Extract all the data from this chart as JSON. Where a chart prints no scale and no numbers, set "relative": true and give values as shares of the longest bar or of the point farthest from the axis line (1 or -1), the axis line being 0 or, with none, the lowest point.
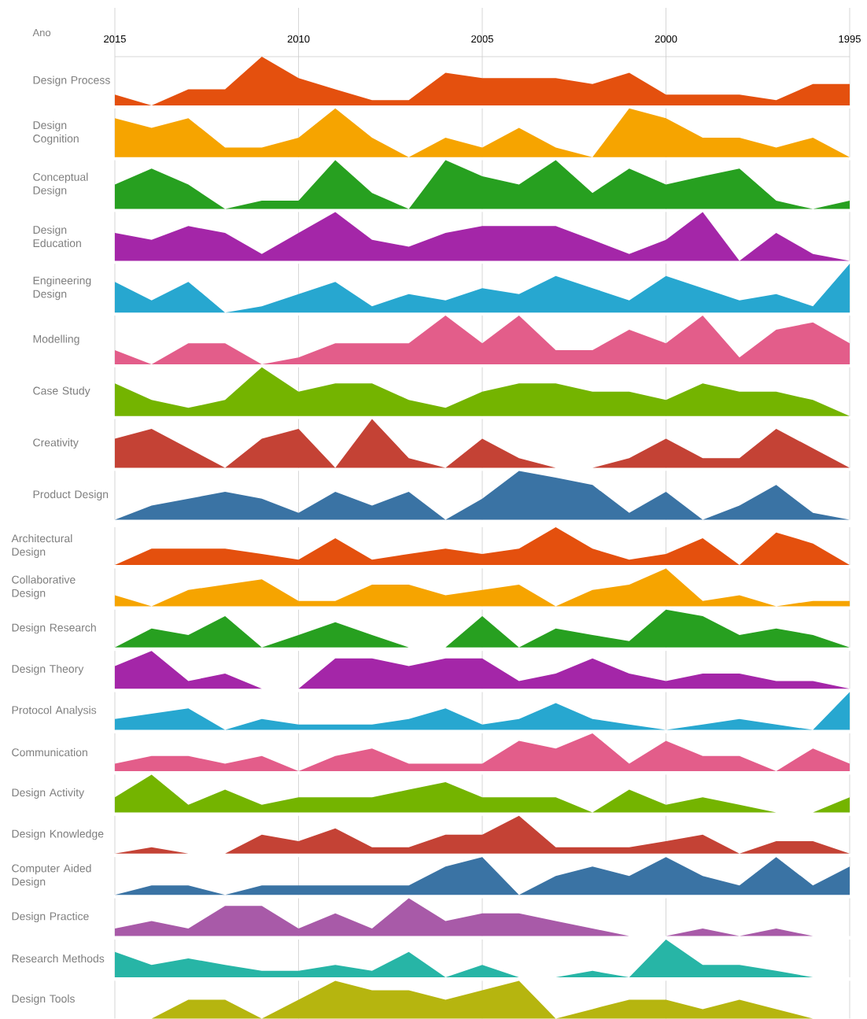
{
  "chart_data": [
    {
      "type": "area",
      "xlabel": "Ano",
      "ylabel": "Design Process",
      "color": "#e4500e",
      "relative": true,
      "grid": "x",
      "xlim": [
        2015,
        1995
      ],
      "xticks": [
        2015,
        2010,
        2005,
        2000,
        1995
      ],
      "x": [
        2015,
        2014,
        2013,
        2012,
        2011,
        2010,
        2009,
        2008,
        2007,
        2006,
        2005,
        2004,
        2003,
        2002,
        2001,
        2000,
        1999,
        1998,
        1997,
        1996,
        1995
      ],
      "values": [
        0.22,
        0,
        0.33,
        0.33,
        1,
        0.56,
        0.33,
        0.11,
        0.11,
        0.67,
        0.56,
        0.56,
        0.56,
        0.44,
        0.67,
        0.22,
        0.22,
        0.22,
        0.11,
        0.44,
        0.44
      ]
    },
    {
      "type": "area",
      "ylabel": "Design Cognition",
      "color": "#f6a400",
      "relative": true,
      "grid": "x",
      "tick_labels": false,
      "xlim": [
        2015,
        1995
      ],
      "xticks": [
        2015,
        2010,
        2005,
        2000,
        1995
      ],
      "x": [
        2015,
        2014,
        2013,
        2012,
        2011,
        2010,
        2009,
        2008,
        2007,
        2006,
        2005,
        2004,
        2003,
        2002,
        2001,
        2000,
        1999,
        1998,
        1997,
        1996,
        1995
      ],
      "values": [
        0.8,
        0.6,
        0.8,
        0.2,
        0.2,
        0.4,
        1,
        0.4,
        0,
        0.4,
        0.2,
        0.6,
        0.2,
        0,
        1,
        0.8,
        0.4,
        0.4,
        0.2,
        0.4,
        0
      ]
    },
    {
      "type": "area",
      "ylabel": "Conceptual Design",
      "color": "#27a020",
      "relative": true,
      "grid": "x",
      "tick_labels": false,
      "xlim": [
        2015,
        1995
      ],
      "xticks": [
        2015,
        2010,
        2005,
        2000,
        1995
      ],
      "x": [
        2015,
        2014,
        2013,
        2012,
        2011,
        2010,
        2009,
        2008,
        2007,
        2006,
        2005,
        2004,
        2003,
        2002,
        2001,
        2000,
        1999,
        1998,
        1997,
        1996,
        1995
      ],
      "values": [
        0.5,
        0.83,
        0.5,
        0,
        0.17,
        0.17,
        1,
        0.33,
        0,
        1,
        0.67,
        0.5,
        1,
        0.33,
        0.83,
        0.5,
        0.67,
        0.83,
        0.17,
        0,
        0.17
      ]
    },
    {
      "type": "area",
      "ylabel": "Design Education",
      "color": "#a426a8",
      "relative": true,
      "grid": "x",
      "tick_labels": false,
      "xlim": [
        2015,
        1995
      ],
      "xticks": [
        2015,
        2010,
        2005,
        2000,
        1995
      ],
      "x": [
        2015,
        2014,
        2013,
        2012,
        2011,
        2010,
        2009,
        2008,
        2007,
        2006,
        2005,
        2004,
        2003,
        2002,
        2001,
        2000,
        1999,
        1998,
        1997,
        1996,
        1995
      ],
      "values": [
        0.57,
        0.43,
        0.71,
        0.57,
        0.14,
        0.57,
        1,
        0.43,
        0.29,
        0.57,
        0.71,
        0.71,
        0.71,
        0.43,
        0.14,
        0.43,
        1,
        0,
        0.57,
        0.14,
        0
      ]
    },
    {
      "type": "area",
      "ylabel": "Engineering Design",
      "color": "#27a7d0",
      "relative": true,
      "grid": "x",
      "tick_labels": false,
      "xlim": [
        2015,
        1995
      ],
      "xticks": [
        2015,
        2010,
        2005,
        2000,
        1995
      ],
      "x": [
        2015,
        2014,
        2013,
        2012,
        2011,
        2010,
        2009,
        2008,
        2007,
        2006,
        2005,
        2004,
        2003,
        2002,
        2001,
        2000,
        1999,
        1998,
        1997,
        1996,
        1995
      ],
      "values": [
        0.63,
        0.25,
        0.63,
        0,
        0.13,
        0.38,
        0.63,
        0.13,
        0.38,
        0.25,
        0.5,
        0.38,
        0.75,
        0.5,
        0.25,
        0.75,
        0.5,
        0.25,
        0.38,
        0.13,
        1
      ]
    },
    {
      "type": "area",
      "ylabel": "Modelling",
      "color": "#e35d8a",
      "relative": true,
      "grid": "x",
      "tick_labels": false,
      "xlim": [
        2015,
        1995
      ],
      "xticks": [
        2015,
        2010,
        2005,
        2000,
        1995
      ],
      "x": [
        2015,
        2014,
        2013,
        2012,
        2011,
        2010,
        2009,
        2008,
        2007,
        2006,
        2005,
        2004,
        2003,
        2002,
        2001,
        2000,
        1999,
        1998,
        1997,
        1996,
        1995
      ],
      "values": [
        0.29,
        0,
        0.43,
        0.43,
        0,
        0.14,
        0.43,
        0.43,
        0.43,
        1,
        0.43,
        1,
        0.29,
        0.29,
        0.71,
        0.43,
        1,
        0.14,
        0.71,
        0.86,
        0.43
      ]
    },
    {
      "type": "area",
      "ylabel": "Case Study",
      "color": "#74b400",
      "relative": true,
      "grid": "x",
      "tick_labels": false,
      "xlim": [
        2015,
        1995
      ],
      "xticks": [
        2015,
        2010,
        2005,
        2000,
        1995
      ],
      "x": [
        2015,
        2014,
        2013,
        2012,
        2011,
        2010,
        2009,
        2008,
        2007,
        2006,
        2005,
        2004,
        2003,
        2002,
        2001,
        2000,
        1999,
        1998,
        1997,
        1996,
        1995
      ],
      "values": [
        0.67,
        0.33,
        0.17,
        0.33,
        1,
        0.5,
        0.67,
        0.67,
        0.33,
        0.17,
        0.5,
        0.67,
        0.67,
        0.5,
        0.5,
        0.33,
        0.67,
        0.5,
        0.5,
        0.33,
        0
      ]
    },
    {
      "type": "area",
      "ylabel": "Creativity",
      "color": "#c44235",
      "relative": true,
      "grid": "x",
      "tick_labels": false,
      "xlim": [
        2015,
        1995
      ],
      "xticks": [
        2015,
        2010,
        2005,
        2000,
        1995
      ],
      "x": [
        2015,
        2014,
        2013,
        2012,
        2011,
        2010,
        2009,
        2008,
        2007,
        2006,
        2005,
        2004,
        2003,
        2002,
        2001,
        2000,
        1999,
        1998,
        1997,
        1996,
        1995
      ],
      "values": [
        0.6,
        0.8,
        0.4,
        0,
        0.6,
        0.8,
        0,
        1,
        0.2,
        0,
        0.6,
        0.2,
        0,
        0,
        0.2,
        0.6,
        0.2,
        0.2,
        0.8,
        0.4,
        0
      ]
    },
    {
      "type": "area",
      "ylabel": "Product Design",
      "color": "#3a73a4",
      "relative": true,
      "grid": "x",
      "tick_labels": false,
      "xlim": [
        2015,
        1995
      ],
      "xticks": [
        2015,
        2010,
        2005,
        2000,
        1995
      ],
      "x": [
        2015,
        2014,
        2013,
        2012,
        2011,
        2010,
        2009,
        2008,
        2007,
        2006,
        2005,
        2004,
        2003,
        2002,
        2001,
        2000,
        1999,
        1998,
        1997,
        1996,
        1995
      ],
      "values": [
        0,
        0.29,
        0.43,
        0.57,
        0.43,
        0.14,
        0.57,
        0.29,
        0.57,
        0,
        0.43,
        1,
        0.86,
        0.71,
        0.14,
        0.57,
        0,
        0.29,
        0.71,
        0.14,
        0
      ]
    },
    {
      "type": "area",
      "ylabel": "Architectural Design",
      "color": "#e4500e",
      "relative": true,
      "grid": "x",
      "tick_labels": false,
      "xlim": [
        2015,
        1995
      ],
      "xticks": [
        2015,
        2010,
        2005,
        2000,
        1995
      ],
      "x": [
        2015,
        2014,
        2013,
        2012,
        2011,
        2010,
        2009,
        2008,
        2007,
        2006,
        2005,
        2004,
        2003,
        2002,
        2001,
        2000,
        1999,
        1998,
        1997,
        1996,
        1995
      ],
      "values": [
        0,
        0.43,
        0.43,
        0.43,
        0.29,
        0.14,
        0.71,
        0.14,
        0.29,
        0.43,
        0.29,
        0.43,
        1,
        0.43,
        0.14,
        0.29,
        0.71,
        0,
        0.86,
        0.57,
        0
      ]
    },
    {
      "type": "area",
      "ylabel": "Collaborative Design",
      "color": "#f6a400",
      "relative": true,
      "grid": "x",
      "tick_labels": false,
      "xlim": [
        2015,
        1995
      ],
      "xticks": [
        2015,
        2010,
        2005,
        2000,
        1995
      ],
      "x": [
        2015,
        2014,
        2013,
        2012,
        2011,
        2010,
        2009,
        2008,
        2007,
        2006,
        2005,
        2004,
        2003,
        2002,
        2001,
        2000,
        1999,
        1998,
        1997,
        1996,
        1995
      ],
      "values": [
        0.29,
        0,
        0.43,
        0.57,
        0.71,
        0.14,
        0.14,
        0.57,
        0.57,
        0.29,
        0.43,
        0.57,
        0,
        0.43,
        0.57,
        1,
        0.14,
        0.29,
        0,
        0.14,
        0.14
      ]
    },
    {
      "type": "area",
      "ylabel": "Design Research",
      "color": "#27a020",
      "relative": true,
      "grid": "x",
      "tick_labels": false,
      "xlim": [
        2015,
        1995
      ],
      "xticks": [
        2015,
        2010,
        2005,
        2000,
        1995
      ],
      "x": [
        2015,
        2014,
        2013,
        2012,
        2011,
        2010,
        2009,
        2008,
        2007,
        2006,
        2005,
        2004,
        2003,
        2002,
        2001,
        2000,
        1999,
        1998,
        1997,
        1996,
        1995
      ],
      "values": [
        0,
        0.5,
        0.33,
        0.83,
        0,
        0.33,
        0.67,
        0.33,
        0,
        0,
        0.83,
        0,
        0.5,
        0.33,
        0.17,
        1,
        0.83,
        0.33,
        0.5,
        0.33,
        0
      ]
    },
    {
      "type": "area",
      "ylabel": "Design Theory",
      "color": "#a426a8",
      "relative": true,
      "grid": "x",
      "tick_labels": false,
      "xlim": [
        2015,
        1995
      ],
      "xticks": [
        2015,
        2010,
        2005,
        2000,
        1995
      ],
      "x": [
        2015,
        2014,
        2013,
        2012,
        2011,
        2010,
        2009,
        2008,
        2007,
        2006,
        2005,
        2004,
        2003,
        2002,
        2001,
        2000,
        1999,
        1998,
        1997,
        1996,
        1995
      ],
      "values": [
        0.6,
        1,
        0.2,
        0.4,
        0,
        0,
        0.8,
        0.8,
        0.6,
        0.8,
        0.8,
        0.2,
        0.4,
        0.8,
        0.4,
        0.2,
        0.4,
        0.4,
        0.2,
        0.2,
        0
      ]
    },
    {
      "type": "area",
      "ylabel": "Protocol Analysis",
      "color": "#27a7d0",
      "relative": true,
      "grid": "x",
      "tick_labels": false,
      "xlim": [
        2015,
        1995
      ],
      "xticks": [
        2015,
        2010,
        2005,
        2000,
        1995
      ],
      "x": [
        2015,
        2014,
        2013,
        2012,
        2011,
        2010,
        2009,
        2008,
        2007,
        2006,
        2005,
        2004,
        2003,
        2002,
        2001,
        2000,
        1999,
        1998,
        1997,
        1996,
        1995
      ],
      "values": [
        0.29,
        0.43,
        0.57,
        0,
        0.29,
        0.14,
        0.14,
        0.14,
        0.29,
        0.57,
        0.14,
        0.29,
        0.71,
        0.29,
        0.14,
        0,
        0.14,
        0.29,
        0.14,
        0,
        1
      ]
    },
    {
      "type": "area",
      "ylabel": "Communication",
      "color": "#e35d8a",
      "relative": true,
      "grid": "x",
      "tick_labels": false,
      "xlim": [
        2015,
        1995
      ],
      "xticks": [
        2015,
        2010,
        2005,
        2000,
        1995
      ],
      "x": [
        2015,
        2014,
        2013,
        2012,
        2011,
        2010,
        2009,
        2008,
        2007,
        2006,
        2005,
        2004,
        2003,
        2002,
        2001,
        2000,
        1999,
        1998,
        1997,
        1996,
        1995
      ],
      "values": [
        0.2,
        0.4,
        0.4,
        0.2,
        0.4,
        0,
        0.4,
        0.6,
        0.2,
        0.2,
        0.2,
        0.8,
        0.6,
        1,
        0.2,
        0.8,
        0.4,
        0.4,
        0,
        0.6,
        0.2
      ]
    },
    {
      "type": "area",
      "ylabel": "Design Activity",
      "color": "#74b400",
      "relative": true,
      "grid": "x",
      "tick_labels": false,
      "xlim": [
        2015,
        1995
      ],
      "xticks": [
        2015,
        2010,
        2005,
        2000,
        1995
      ],
      "x": [
        2015,
        2014,
        2013,
        2012,
        2011,
        2010,
        2009,
        2008,
        2007,
        2006,
        2005,
        2004,
        2003,
        2002,
        2001,
        2000,
        1999,
        1998,
        1997,
        1996,
        1995
      ],
      "values": [
        0.4,
        1,
        0.2,
        0.6,
        0.2,
        0.4,
        0.4,
        0.4,
        0.6,
        0.8,
        0.4,
        0.4,
        0.4,
        0,
        0.6,
        0.2,
        0.4,
        0.2,
        0,
        0,
        0.4
      ]
    },
    {
      "type": "area",
      "ylabel": "Design Knowledge",
      "color": "#c44235",
      "relative": true,
      "grid": "x",
      "tick_labels": false,
      "xlim": [
        2015,
        1995
      ],
      "xticks": [
        2015,
        2010,
        2005,
        2000,
        1995
      ],
      "x": [
        2015,
        2014,
        2013,
        2012,
        2011,
        2010,
        2009,
        2008,
        2007,
        2006,
        2005,
        2004,
        2003,
        2002,
        2001,
        2000,
        1999,
        1998,
        1997,
        1996,
        1995
      ],
      "values": [
        0,
        0.17,
        0,
        0,
        0.5,
        0.33,
        0.67,
        0.17,
        0.17,
        0.5,
        0.5,
        1,
        0.17,
        0.17,
        0.17,
        0.33,
        0.5,
        0,
        0.33,
        0.33,
        0
      ]
    },
    {
      "type": "area",
      "ylabel": "Computer Aided Design",
      "color": "#3a73a4",
      "relative": true,
      "grid": "x",
      "tick_labels": false,
      "xlim": [
        2015,
        1995
      ],
      "xticks": [
        2015,
        2010,
        2005,
        2000,
        1995
      ],
      "x": [
        2015,
        2014,
        2013,
        2012,
        2011,
        2010,
        2009,
        2008,
        2007,
        2006,
        2005,
        2004,
        2003,
        2002,
        2001,
        2000,
        1999,
        1998,
        1997,
        1996,
        1995
      ],
      "values": [
        0,
        0.25,
        0.25,
        0,
        0.25,
        0.25,
        0.25,
        0.25,
        0.25,
        0.75,
        1,
        0,
        0.5,
        0.75,
        0.5,
        1,
        0.5,
        0.25,
        1,
        0.25,
        0.75
      ]
    },
    {
      "type": "area",
      "ylabel": "Design Practice",
      "color": "#a85aa8",
      "relative": true,
      "grid": "x",
      "tick_labels": false,
      "xlim": [
        2015,
        1995
      ],
      "xticks": [
        2015,
        2010,
        2005,
        2000,
        1995
      ],
      "x": [
        2015,
        2014,
        2013,
        2012,
        2011,
        2010,
        2009,
        2008,
        2007,
        2006,
        2005,
        2004,
        2003,
        2002,
        2001,
        2000,
        1999,
        1998,
        1997,
        1996,
        1995
      ],
      "values": [
        0.2,
        0.4,
        0.2,
        0.8,
        0.8,
        0.2,
        0.6,
        0.2,
        1,
        0.4,
        0.6,
        0.6,
        0.4,
        0.2,
        0,
        0,
        0.2,
        0,
        0.2,
        0,
        0
      ]
    },
    {
      "type": "area",
      "ylabel": "Research Methods",
      "color": "#27b5a6",
      "relative": true,
      "grid": "x",
      "tick_labels": false,
      "xlim": [
        2015,
        1995
      ],
      "xticks": [
        2015,
        2010,
        2005,
        2000,
        1995
      ],
      "x": [
        2015,
        2014,
        2013,
        2012,
        2011,
        2010,
        2009,
        2008,
        2007,
        2006,
        2005,
        2004,
        2003,
        2002,
        2001,
        2000,
        1999,
        1998,
        1997,
        1996,
        1995
      ],
      "values": [
        0.67,
        0.33,
        0.5,
        0.33,
        0.17,
        0.17,
        0.33,
        0.17,
        0.67,
        0,
        0.33,
        0,
        0,
        0.17,
        0,
        1,
        0.33,
        0.33,
        0.17,
        0,
        0
      ]
    },
    {
      "type": "area",
      "ylabel": "Design Tools",
      "color": "#b6b50f",
      "relative": true,
      "grid": "x",
      "tick_labels": false,
      "xlim": [
        2015,
        1995
      ],
      "xticks": [
        2015,
        2010,
        2005,
        2000,
        1995
      ],
      "x": [
        2015,
        2014,
        2013,
        2012,
        2011,
        2010,
        2009,
        2008,
        2007,
        2006,
        2005,
        2004,
        2003,
        2002,
        2001,
        2000,
        1999,
        1998,
        1997,
        1996,
        1995
      ],
      "values": [
        0,
        0,
        0.5,
        0.5,
        0,
        0.5,
        1,
        0.75,
        0.75,
        0.5,
        0.75,
        1,
        0,
        0.25,
        0.5,
        0.5,
        0.25,
        0.5,
        0.25,
        0,
        0
      ]
    }
  ]
}
